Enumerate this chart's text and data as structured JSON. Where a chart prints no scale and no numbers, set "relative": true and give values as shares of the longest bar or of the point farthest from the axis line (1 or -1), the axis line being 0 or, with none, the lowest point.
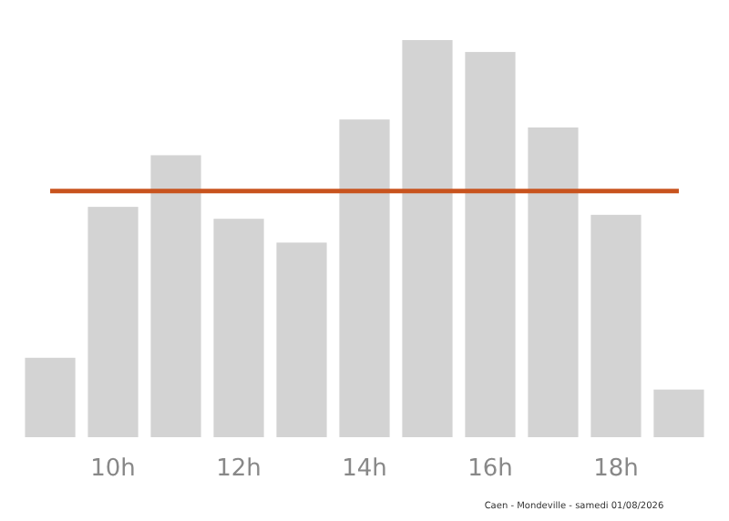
{
  "chart_data": {
    "type": "bar",
    "relative": true,
    "categories": [
      null,
      "10h",
      null,
      "12h",
      null,
      "14h",
      null,
      "16h",
      null,
      "18h",
      null
    ],
    "values": [
      0.2,
      0.58,
      0.71,
      0.55,
      0.49,
      0.8,
      1,
      0.97,
      0.78,
      0.56,
      0.12
    ],
    "color": "#d3d3d3",
    "ref_lines": [
      {
        "axis": "y",
        "value": 0.62,
        "color": "#c8531e"
      }
    ],
    "annotations": [
      "Caen - Mondeville - samedi 01/08/2026"
    ],
    "grid": false
  }
}
